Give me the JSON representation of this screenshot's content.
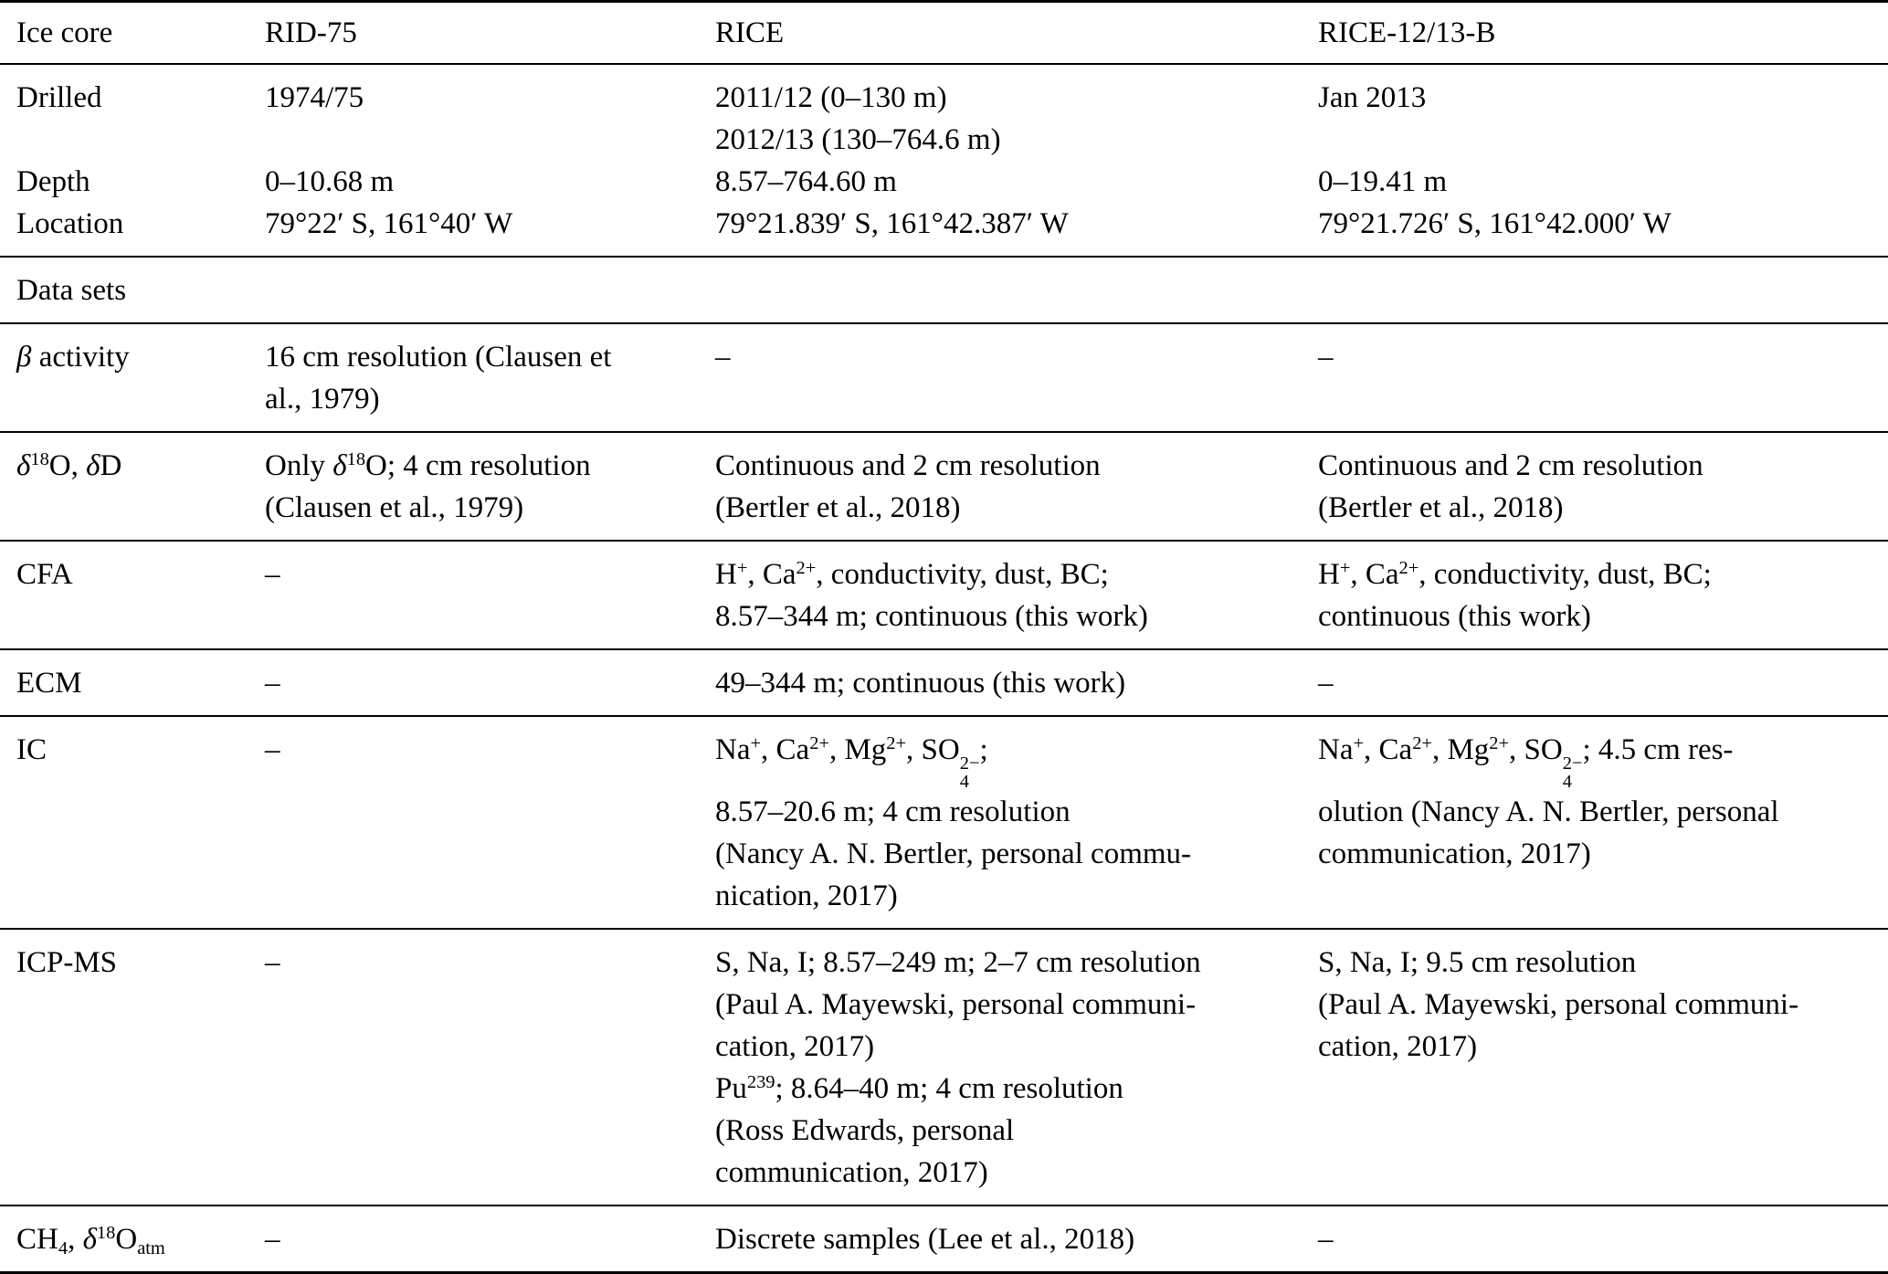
{
  "colors": {
    "background": "#ffffff",
    "text": "#000000",
    "rule": "#000000"
  },
  "table": {
    "header": {
      "cells": [
        "Ice core",
        "RID-75",
        "RICE",
        "RICE-12/13-B"
      ]
    },
    "rows": [
      {
        "name": "drilled-depth-location",
        "cells": [
          {
            "lines": [
              "Drilled",
              "",
              "Depth",
              "Location"
            ]
          },
          {
            "lines": [
              "1974/75",
              "",
              "0–10.68 m",
              "79°22′ S, 161°40′ W"
            ]
          },
          {
            "lines": [
              "2011/12 (0–130 m)",
              "2012/13 (130–764.6 m)",
              "8.57–764.60 m",
              "79°21.839′ S, 161°42.387′ W"
            ]
          },
          {
            "lines": [
              "Jan 2013",
              "",
              "0–19.41 m",
              "79°21.726′ S, 161°42.000′ W"
            ]
          }
        ]
      },
      {
        "name": "data-sets",
        "cells": [
          {
            "lines": [
              "Data sets"
            ]
          },
          {
            "lines": []
          },
          {
            "lines": []
          },
          {
            "lines": []
          }
        ]
      },
      {
        "name": "beta-activity",
        "cells": [
          {
            "lines": [
              [
                {
                  "t": "β",
                  "s": "i"
                },
                " activity"
              ]
            ]
          },
          {
            "lines": [
              "16 cm resolution (Clausen et",
              "al., 1979)"
            ]
          },
          {
            "lines": [
              "–"
            ]
          },
          {
            "lines": [
              "–"
            ]
          }
        ]
      },
      {
        "name": "delta18o-deltad",
        "cells": [
          {
            "lines": [
              [
                {
                  "t": "δ",
                  "s": "i"
                },
                {
                  "t": "18",
                  "s": "sup"
                },
                "O, ",
                {
                  "t": "δ",
                  "s": "i"
                },
                "D"
              ]
            ]
          },
          {
            "lines": [
              [
                "Only ",
                {
                  "t": "δ",
                  "s": "i"
                },
                {
                  "t": "18",
                  "s": "sup"
                },
                "O; 4 cm resolution"
              ],
              "(Clausen et al., 1979)"
            ]
          },
          {
            "lines": [
              "Continuous and 2 cm resolution",
              "(Bertler et al., 2018)"
            ]
          },
          {
            "lines": [
              "Continuous and 2 cm resolution",
              "(Bertler et al., 2018)"
            ]
          }
        ]
      },
      {
        "name": "cfa",
        "cells": [
          {
            "lines": [
              "CFA"
            ]
          },
          {
            "lines": [
              "–"
            ]
          },
          {
            "lines": [
              [
                "H",
                {
                  "t": "+",
                  "s": "sup"
                },
                ", Ca",
                {
                  "t": "2+",
                  "s": "sup"
                },
                ", conductivity, dust, BC;"
              ],
              "8.57–344 m; continuous (this work)"
            ]
          },
          {
            "lines": [
              [
                "H",
                {
                  "t": "+",
                  "s": "sup"
                },
                ", Ca",
                {
                  "t": "2+",
                  "s": "sup"
                },
                ", conductivity, dust, BC;"
              ],
              "continuous (this work)"
            ]
          }
        ]
      },
      {
        "name": "ecm",
        "cells": [
          {
            "lines": [
              "ECM"
            ]
          },
          {
            "lines": [
              "–"
            ]
          },
          {
            "lines": [
              "49–344 m; continuous (this work)"
            ]
          },
          {
            "lines": [
              "–"
            ]
          }
        ]
      },
      {
        "name": "ic",
        "cells": [
          {
            "lines": [
              "IC"
            ]
          },
          {
            "lines": [
              "–"
            ]
          },
          {
            "lines": [
              [
                "Na",
                {
                  "t": "+",
                  "s": "sup"
                },
                ", Ca",
                {
                  "t": "2+",
                  "s": "sup"
                },
                ", Mg",
                {
                  "t": "2+",
                  "s": "sup"
                },
                ", SO",
                {
                  "s": "stack",
                  "sup": "2−",
                  "sub": "4"
                },
                ";"
              ],
              "8.57–20.6 m; 4 cm resolution",
              "(Nancy A. N. Bertler, personal commu-",
              "nication, 2017)"
            ]
          },
          {
            "lines": [
              [
                "Na",
                {
                  "t": "+",
                  "s": "sup"
                },
                ", Ca",
                {
                  "t": "2+",
                  "s": "sup"
                },
                ", Mg",
                {
                  "t": "2+",
                  "s": "sup"
                },
                ", SO",
                {
                  "s": "stack",
                  "sup": "2−",
                  "sub": "4"
                },
                "; 4.5 cm res-"
              ],
              "olution (Nancy A. N. Bertler, personal",
              "communication, 2017)"
            ]
          }
        ]
      },
      {
        "name": "icp-ms",
        "cells": [
          {
            "lines": [
              "ICP-MS"
            ]
          },
          {
            "lines": [
              "–"
            ]
          },
          {
            "lines": [
              "S, Na, I; 8.57–249 m; 2–7 cm resolution",
              "(Paul A. Mayewski, personal communi-",
              "cation, 2017)",
              [
                "Pu",
                {
                  "t": "239",
                  "s": "sup"
                },
                "; 8.64–40 m; 4 cm resolution"
              ],
              "(Ross Edwards, personal",
              "communication, 2017)"
            ]
          },
          {
            "lines": [
              "S, Na, I; 9.5 cm resolution",
              "(Paul A. Mayewski, personal communi-",
              "cation, 2017)"
            ]
          }
        ]
      },
      {
        "name": "ch4-delta18o-atm",
        "cells": [
          {
            "lines": [
              [
                "CH",
                {
                  "t": "4",
                  "s": "sub"
                },
                ", ",
                {
                  "t": "δ",
                  "s": "i"
                },
                {
                  "t": "18",
                  "s": "sup"
                },
                "O",
                {
                  "t": "atm",
                  "s": "sub"
                }
              ]
            ]
          },
          {
            "lines": [
              "–"
            ]
          },
          {
            "lines": [
              "Discrete samples (Lee et al., 2018)"
            ]
          },
          {
            "lines": [
              "–"
            ]
          }
        ]
      }
    ]
  }
}
